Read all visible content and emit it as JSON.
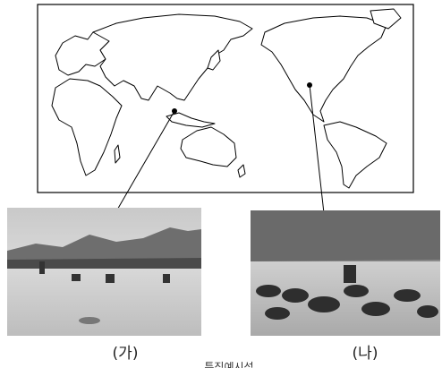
{
  "labels": {
    "left": "(가)",
    "right": "(나)"
  },
  "caption": "특징예시성"
}
